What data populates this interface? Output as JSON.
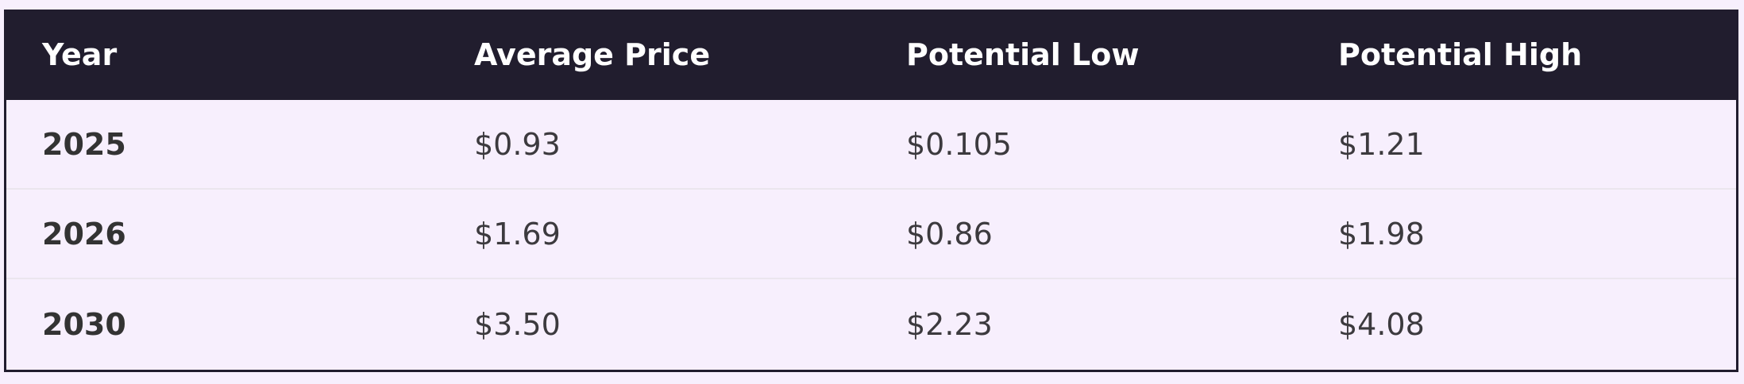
{
  "table": {
    "headers": [
      "Year",
      "Average Price",
      "Potential Low",
      "Potential High"
    ],
    "rows": [
      [
        "2025",
        "$0.93",
        "$0.105",
        "$1.21"
      ],
      [
        "2026",
        "$1.69",
        "$0.86",
        "$1.98"
      ],
      [
        "2030",
        "$3.50",
        "$2.23",
        "$4.08"
      ]
    ]
  },
  "colors": {
    "header_bg": "#211d2e",
    "row_bg": "#f7effd",
    "header_text": "#ffffff"
  }
}
